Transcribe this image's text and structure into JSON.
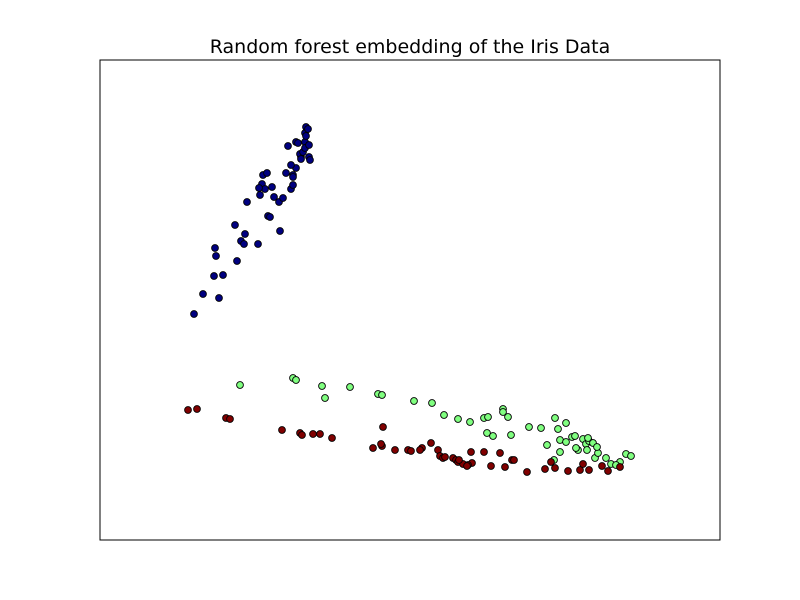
{
  "chart_data": {
    "type": "scatter",
    "title": "Random forest embedding of the Iris Data",
    "xlabel": "",
    "ylabel": "",
    "xlim": [
      0,
      620
    ],
    "ylim": [
      0,
      480
    ],
    "grid": false,
    "legend": "none",
    "axis_ticks": false,
    "series": [
      {
        "color": "#000080",
        "points": [
          [
            94,
            226
          ],
          [
            103,
            246
          ],
          [
            119,
            242
          ],
          [
            115,
            292
          ],
          [
            116,
            284
          ],
          [
            114,
            264
          ],
          [
            123,
            265
          ],
          [
            137,
            279
          ],
          [
            141,
            299
          ],
          [
            144,
            296
          ],
          [
            135,
            315
          ],
          [
            147,
            338
          ],
          [
            158,
            296
          ],
          [
            145,
            306
          ],
          [
            168,
            324
          ],
          [
            170,
            323
          ],
          [
            180,
            309
          ],
          [
            179,
            338
          ],
          [
            162,
            356
          ],
          [
            163,
            365
          ],
          [
            167,
            367
          ],
          [
            160,
            345
          ],
          [
            165,
            351
          ],
          [
            159,
            352
          ],
          [
            172,
            353
          ],
          [
            174,
            343
          ],
          [
            183,
            342
          ],
          [
            186,
            367
          ],
          [
            191,
            351
          ],
          [
            193,
            355
          ],
          [
            188,
            394
          ],
          [
            196,
            398
          ],
          [
            198,
            397
          ],
          [
            205,
            398
          ],
          [
            205,
            407
          ],
          [
            206,
            413
          ],
          [
            208,
            411
          ],
          [
            209,
            383
          ],
          [
            210,
            380
          ],
          [
            201,
            383
          ],
          [
            200,
            386
          ],
          [
            203,
            388
          ],
          [
            205,
            392
          ],
          [
            206,
            404
          ],
          [
            196,
            372
          ],
          [
            191,
            375
          ],
          [
            193,
            365
          ],
          [
            193,
            363
          ],
          [
            201,
            381
          ],
          [
            209,
            395
          ]
        ]
      },
      {
        "color": "#80ff80",
        "points": [
          [
            140,
            155
          ],
          [
            193,
            162
          ],
          [
            196,
            160
          ],
          [
            222,
            154
          ],
          [
            225,
            142
          ],
          [
            250,
            153
          ],
          [
            278,
            146
          ],
          [
            282,
            145
          ],
          [
            314,
            139
          ],
          [
            332,
            137
          ],
          [
            344,
            125
          ],
          [
            358,
            121
          ],
          [
            370,
            118
          ],
          [
            384,
            122
          ],
          [
            388,
            123
          ],
          [
            403,
            131
          ],
          [
            408,
            123
          ],
          [
            387,
            107
          ],
          [
            393,
            104
          ],
          [
            411,
            105
          ],
          [
            403,
            128
          ],
          [
            429,
            113
          ],
          [
            441,
            112
          ],
          [
            455,
            122
          ],
          [
            458,
            111
          ],
          [
            466,
            117
          ],
          [
            447,
            95
          ],
          [
            460,
            100
          ],
          [
            466,
            98
          ],
          [
            472,
            103
          ],
          [
            475,
            104
          ],
          [
            478,
            90
          ],
          [
            483,
            101
          ],
          [
            476,
            92
          ],
          [
            486,
            96
          ],
          [
            489,
            99
          ],
          [
            493,
            97
          ],
          [
            488,
            102
          ],
          [
            495,
            82
          ],
          [
            498,
            87
          ],
          [
            497,
            93
          ],
          [
            506,
            82
          ],
          [
            511,
            76
          ],
          [
            526,
            86
          ],
          [
            531,
            84
          ],
          [
            520,
            78
          ],
          [
            516,
            75
          ],
          [
            487,
            90
          ],
          [
            460,
            88
          ],
          [
            454,
            80
          ]
        ]
      },
      {
        "color": "#800000",
        "points": [
          [
            88,
            130
          ],
          [
            97,
            131
          ],
          [
            126,
            122
          ],
          [
            130,
            121
          ],
          [
            182,
            110
          ],
          [
            200,
            107
          ],
          [
            202,
            105
          ],
          [
            213,
            106
          ],
          [
            220,
            106
          ],
          [
            232,
            102
          ],
          [
            283,
            113
          ],
          [
            273,
            92
          ],
          [
            282,
            94
          ],
          [
            281,
            96
          ],
          [
            295,
            90
          ],
          [
            308,
            90
          ],
          [
            311,
            89
          ],
          [
            322,
            92
          ],
          [
            320,
            90
          ],
          [
            331,
            97
          ],
          [
            338,
            90
          ],
          [
            340,
            84
          ],
          [
            343,
            82
          ],
          [
            345,
            83
          ],
          [
            353,
            82
          ],
          [
            356,
            80
          ],
          [
            358,
            78
          ],
          [
            363,
            76
          ],
          [
            372,
            77
          ],
          [
            359,
            80
          ],
          [
            371,
            88
          ],
          [
            384,
            88
          ],
          [
            400,
            87
          ],
          [
            391,
            74
          ],
          [
            368,
            75
          ],
          [
            412,
            80
          ],
          [
            414,
            80
          ],
          [
            427,
            68
          ],
          [
            445,
            71
          ],
          [
            455,
            72
          ],
          [
            468,
            69
          ],
          [
            480,
            70
          ],
          [
            483,
            76
          ],
          [
            489,
            70
          ],
          [
            502,
            74
          ],
          [
            508,
            69
          ],
          [
            520,
            73
          ],
          [
            451,
            78
          ],
          [
            405,
            73
          ],
          [
            367,
            74
          ]
        ]
      }
    ]
  }
}
